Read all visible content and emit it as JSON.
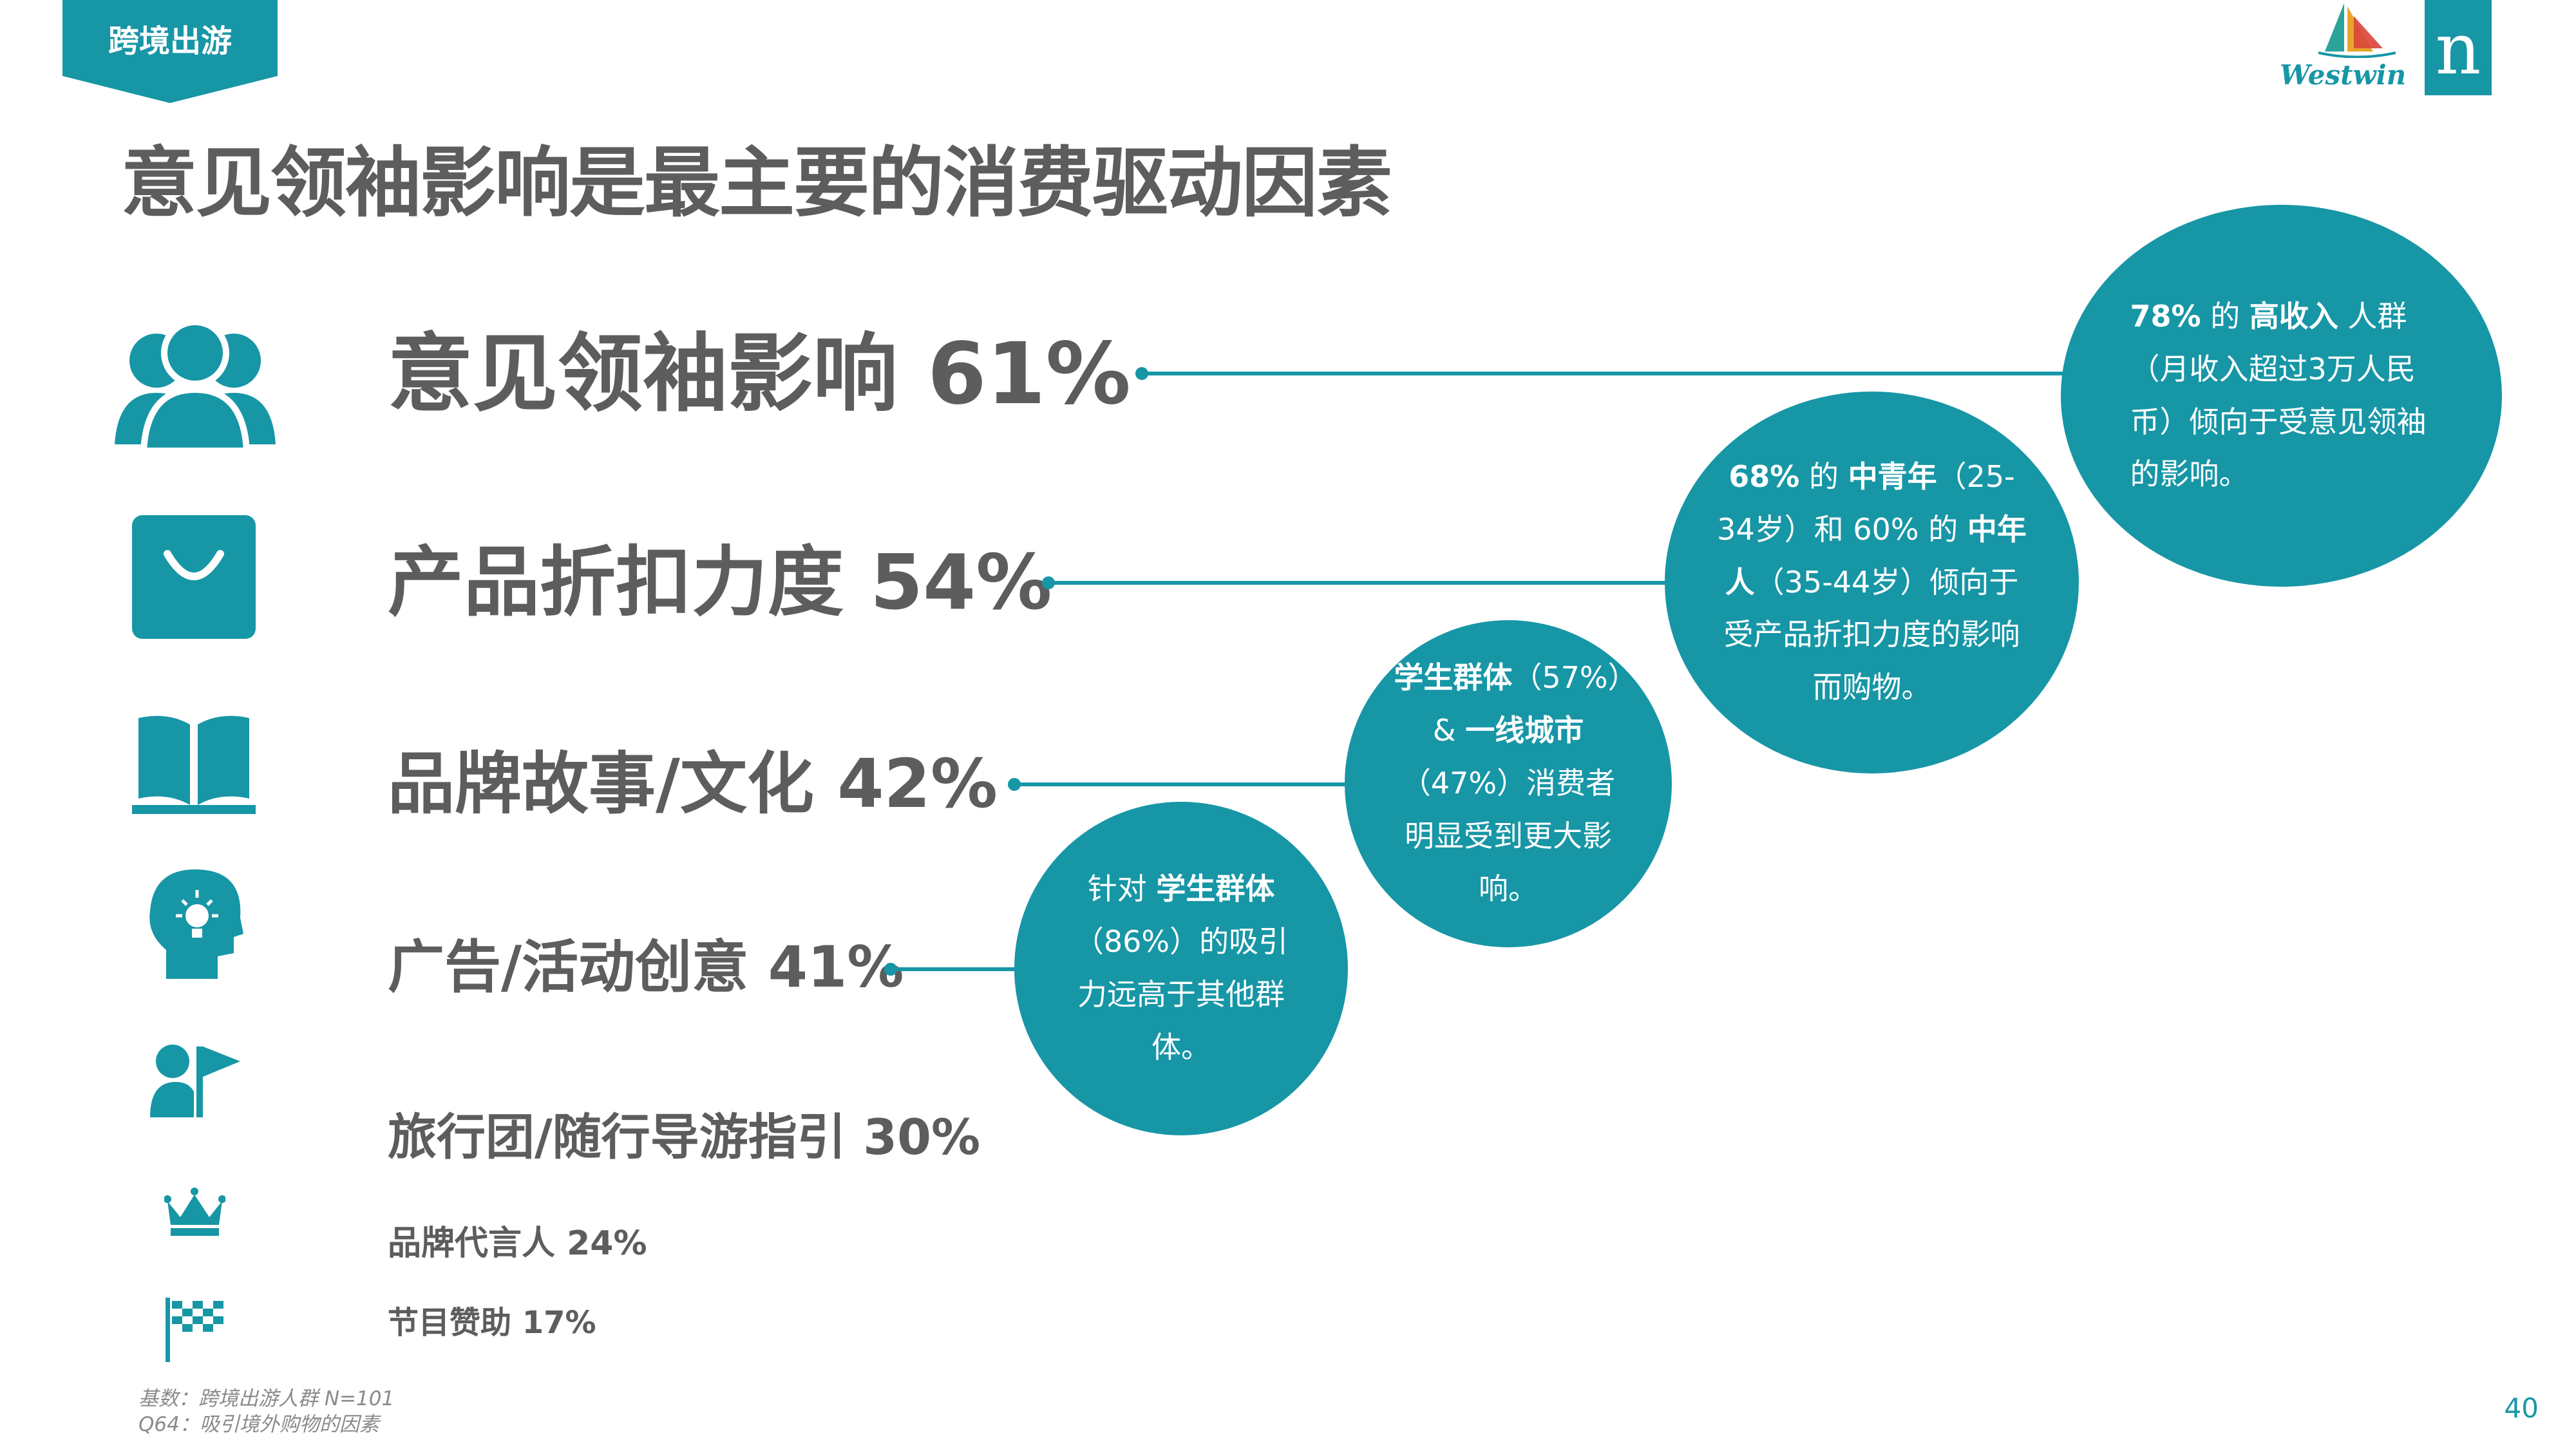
{
  "header": {
    "tag": "跨境出游",
    "title": "意见领袖影响是最主要的消费驱动因素"
  },
  "logos": {
    "westwin": "Westwin",
    "nielsen": "n"
  },
  "factors": [
    {
      "label": "意见领袖影响 61%",
      "icon": "people-icon"
    },
    {
      "label": "产品折扣力度 54%",
      "icon": "shopping-bag-icon"
    },
    {
      "label": "品牌故事/文化  42%",
      "icon": "open-book-icon"
    },
    {
      "label": "广告/活动创意  41%",
      "icon": "head-lightbulb-icon"
    },
    {
      "label": "旅行团/随行导游指引 30%",
      "icon": "person-flag-icon"
    },
    {
      "label": "品牌代言人 24%",
      "icon": "crown-icon"
    },
    {
      "label": "节目赞助 17%",
      "icon": "checkered-flag-icon"
    }
  ],
  "bubbles": [
    {
      "b1": "78%",
      "t1": " 的 ",
      "b2": "高收入",
      "t2": " 人群（月收入超过3万人民币）倾向于受意见领袖的影响。"
    },
    {
      "b1": "68%",
      "t1": " 的 ",
      "b2": "中青年",
      "t2": "（25-34岁）和 60% 的 ",
      "b3": "中年人",
      "t3": "（35-44岁）倾向于受产品折扣力度的影响而购物。"
    },
    {
      "b1": "学生群体",
      "t1": "（57%）& ",
      "b2": "一线城市",
      "t2": "（47%）消费者明显受到更大影响。"
    },
    {
      "t0": "针对 ",
      "b1": "学生群体",
      "t1": "（86%）的吸引力远高于其他群体。"
    }
  ],
  "footnote": {
    "line1": "基数：跨境出游人群 N=101",
    "line2": "Q64：吸引境外购物的因素"
  },
  "page_number": "40",
  "colors": {
    "accent": "#1796A6",
    "text": "#5d5d5d"
  }
}
